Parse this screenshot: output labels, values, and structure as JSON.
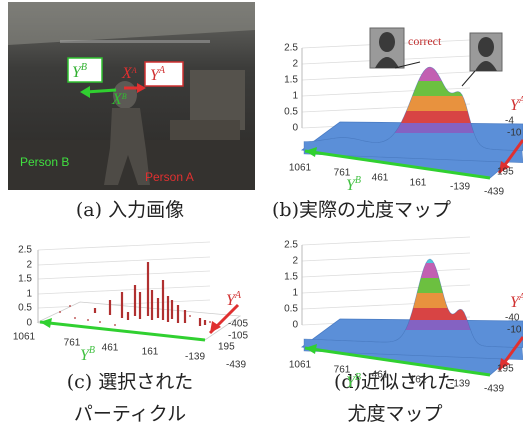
{
  "panels": [
    {
      "caption": [
        "(a) 入力画像"
      ],
      "labels": [
        {
          "text": "Y",
          "sup": "B"
        },
        {
          "text": "Y",
          "sup": "A"
        },
        {
          "text": "X",
          "sup": "A"
        },
        {
          "text": "X",
          "sup": "B"
        },
        {
          "text": "Person B"
        },
        {
          "text": "Person A"
        }
      ]
    },
    {
      "caption": [
        "(b)実際の尤度マップ"
      ],
      "annotation": "correct",
      "z_ticks": [
        "0",
        "0.5",
        "1",
        "1.5",
        "2",
        "2.5"
      ],
      "x_ticks": [
        "1061",
        "761",
        "461",
        "161",
        "-139",
        "-439"
      ],
      "side_ticks": [
        "-4",
        "-10",
        "195"
      ],
      "axis_labels": [
        {
          "text": "Y",
          "sup": "A"
        },
        {
          "text": "Y",
          "sup": "B"
        }
      ]
    },
    {
      "caption": [
        "(c) 選択された",
        "パーティクル"
      ],
      "z_ticks": [
        "0",
        "0.5",
        "1",
        "1.5",
        "2",
        "2.5"
      ],
      "x_ticks": [
        "1061",
        "761",
        "461",
        "161",
        "-139",
        "-439"
      ],
      "side_ticks": [
        "-405",
        "-105",
        "195"
      ],
      "axis_labels": [
        {
          "text": "Y",
          "sup": "A"
        },
        {
          "text": "Y",
          "sup": "B"
        }
      ]
    },
    {
      "caption": [
        "(d)近似された",
        "尤度マップ"
      ],
      "z_ticks": [
        "0",
        "0.5",
        "1",
        "1.5",
        "2",
        "2.5"
      ],
      "x_ticks": [
        "1061",
        "761",
        "461",
        "161",
        "-139",
        "-439"
      ],
      "side_ticks": [
        "-40",
        "-10",
        "195"
      ],
      "axis_labels": [
        {
          "text": "Y",
          "sup": "A"
        },
        {
          "text": "Y",
          "sup": "B"
        }
      ]
    }
  ]
}
